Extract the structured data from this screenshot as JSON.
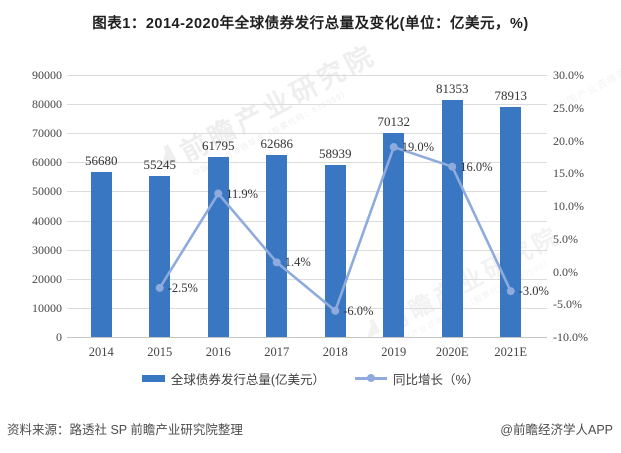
{
  "title": "图表1：2014-2020年全球债券发行总量及变化(单位：亿美元，%)",
  "chart_data": {
    "type": "combo",
    "categories": [
      "2014",
      "2015",
      "2016",
      "2017",
      "2018",
      "2019",
      "2020E",
      "2021E"
    ],
    "series": [
      {
        "name": "全球债券发行总量(亿美元）",
        "type": "bar",
        "axis": "left",
        "values": [
          56680,
          55245,
          61795,
          62686,
          58939,
          70132,
          81353,
          78913
        ],
        "labels": [
          "56680",
          "55245",
          "61795",
          "62686",
          "58939",
          "70132",
          "81353",
          "78913"
        ]
      },
      {
        "name": "同比增长（%）",
        "type": "line",
        "axis": "right",
        "values": [
          null,
          -2.5,
          11.9,
          1.4,
          -6.0,
          19.0,
          16.0,
          -3.0
        ],
        "labels": [
          null,
          "-2.5%",
          "11.9%",
          "1.4%",
          "-6.0%",
          "19.0%",
          "16.0%",
          "-3.0%"
        ]
      }
    ],
    "left_axis": {
      "min": 0,
      "max": 90000,
      "step": 10000,
      "ticks": [
        "0",
        "10000",
        "20000",
        "30000",
        "40000",
        "50000",
        "60000",
        "70000",
        "80000",
        "90000"
      ]
    },
    "right_axis": {
      "min": -10,
      "max": 30,
      "step": 5,
      "ticks": [
        "-10.0%",
        "-5.0%",
        "0.0%",
        "5.0%",
        "10.0%",
        "15.0%",
        "20.0%",
        "25.0%",
        "30.0%"
      ]
    },
    "grid": "horizontal",
    "legend_position": "bottom"
  },
  "legend": {
    "bar_label": "全球债券发行总量(亿美元）",
    "line_label": "同比增长（%）"
  },
  "footer": {
    "source": "资料来源：路透社 SP 前瞻产业研究院整理",
    "brand": "@前瞻经济学人APP"
  },
  "watermark": {
    "big": "前瞻产业研究院",
    "small": "中国产业咨询领导者（股票代码：839599）"
  },
  "colors": {
    "bar": "#3A77C3",
    "line": "#8FAADC",
    "grid": "#DCDCDC",
    "axis_text": "#454545",
    "label_text": "#333333",
    "source_text": "#4D4D4D"
  }
}
